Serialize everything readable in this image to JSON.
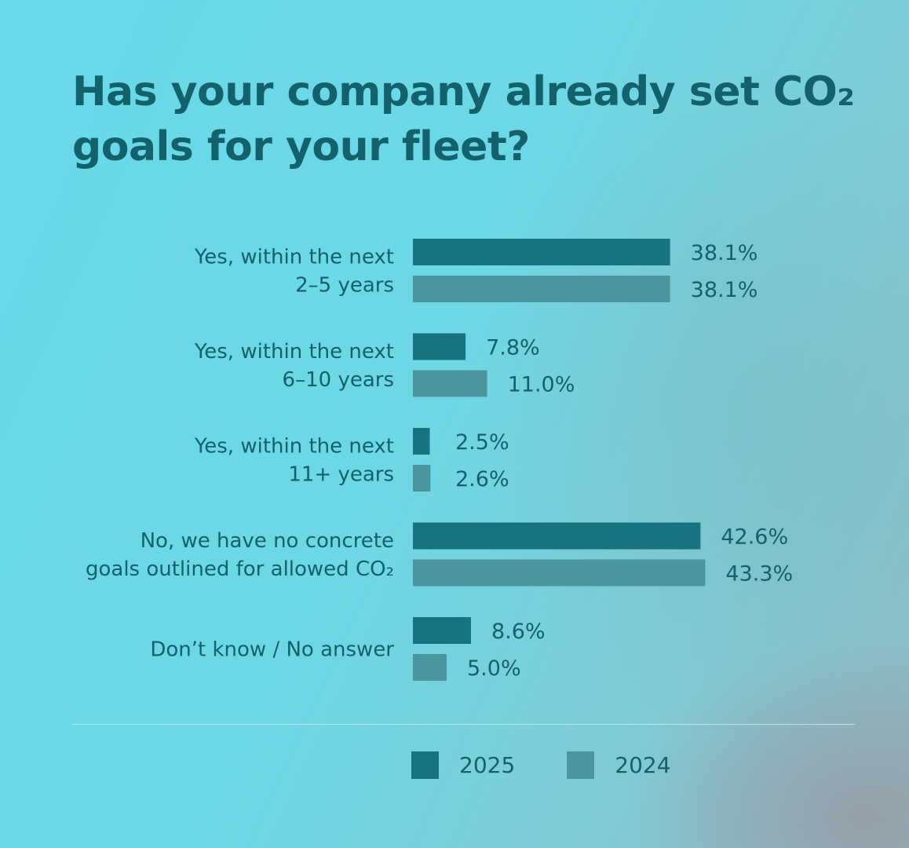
{
  "title": "Has your company already set CO₂ goals for your fleet?",
  "colors": {
    "series_2025": "#17737f",
    "series_2024": "#4b969d",
    "text": "#12616b"
  },
  "chart_data": {
    "type": "bar",
    "orientation": "horizontal",
    "title": "Has your company already set CO₂ goals for your fleet?",
    "categories": [
      [
        "Yes, within the next",
        "2–5 years"
      ],
      [
        "Yes, within the next",
        "6–10 years"
      ],
      [
        "Yes, within the next",
        "11+ years"
      ],
      [
        "No, we have no concrete",
        "goals outlined for allowed CO₂"
      ],
      [
        "Don’t know / No answer"
      ]
    ],
    "series": [
      {
        "name": "2025",
        "values": [
          38.1,
          7.8,
          2.5,
          42.6,
          8.6
        ],
        "labels": [
          "38.1%",
          "7.8%",
          "2.5%",
          "42.6%",
          "8.6%"
        ]
      },
      {
        "name": "2024",
        "values": [
          38.1,
          11.0,
          2.6,
          43.3,
          5.0
        ],
        "labels": [
          "38.1%",
          "11.0%",
          "2.6%",
          "43.3%",
          "5.0%"
        ]
      }
    ],
    "value_unit": "%",
    "legend": [
      "2025",
      "2024"
    ],
    "legend_position": "bottom"
  }
}
